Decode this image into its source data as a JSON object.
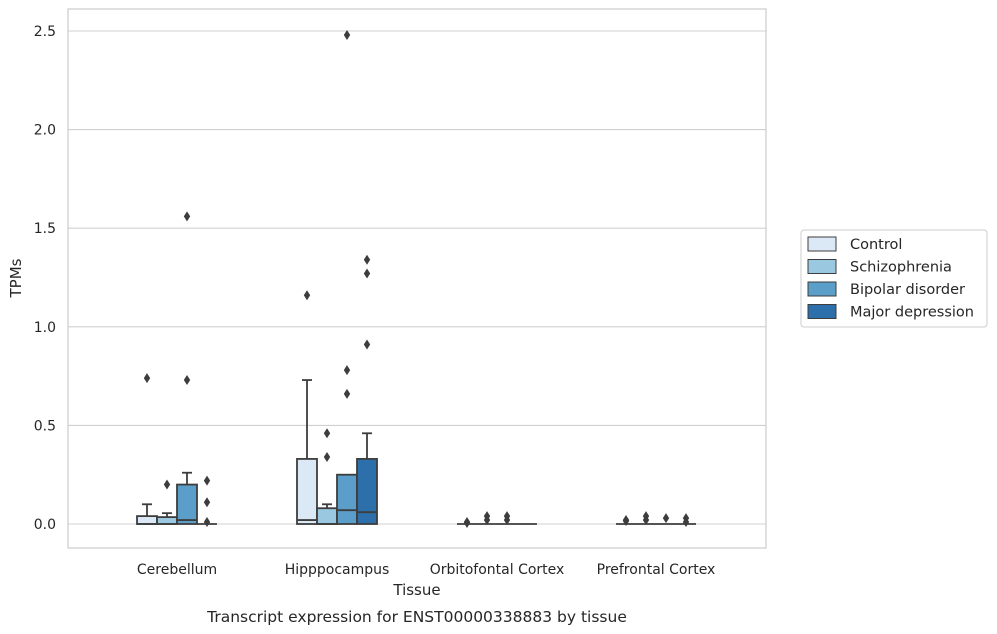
{
  "chart_data": {
    "type": "box",
    "title": "",
    "caption": "Transcript expression for ENST00000338883 by tissue",
    "xlabel": "Tissue",
    "ylabel": "TPMs",
    "ylim": [
      -0.12,
      2.62
    ],
    "yticks": [
      0.0,
      0.5,
      1.0,
      1.5,
      2.0,
      2.5
    ],
    "ytick_labels": [
      "0.0",
      "0.5",
      "1.0",
      "1.5",
      "2.0",
      "2.5"
    ],
    "grid": "horizontal",
    "legend_position": "right",
    "categories": [
      "Cerebellum",
      "Hipppocampus",
      "Orbitofontal Cortex",
      "Prefrontal Cortex"
    ],
    "series": [
      {
        "name": "Control",
        "color": "#dbe9f6",
        "boxes": [
          {
            "q1": 0.0,
            "median": 0.0,
            "q3": 0.04,
            "whisker_low": 0.0,
            "whisker_high": 0.1,
            "outliers": [
              0.74
            ]
          },
          {
            "q1": 0.0,
            "median": 0.02,
            "q3": 0.33,
            "whisker_low": 0.0,
            "whisker_high": 0.73,
            "outliers": [
              1.16
            ]
          },
          {
            "q1": 0.0,
            "median": 0.0,
            "q3": 0.0,
            "whisker_low": 0.0,
            "whisker_high": 0.0,
            "outliers": [
              0.01,
              0.005
            ]
          },
          {
            "q1": 0.0,
            "median": 0.0,
            "q3": 0.0,
            "whisker_low": 0.0,
            "whisker_high": 0.0,
            "outliers": [
              0.02,
              0.015
            ]
          }
        ]
      },
      {
        "name": "Schizophrenia",
        "color": "#9ac8e0",
        "boxes": [
          {
            "q1": 0.0,
            "median": 0.0,
            "q3": 0.035,
            "whisker_low": 0.0,
            "whisker_high": 0.055,
            "outliers": [
              0.2
            ]
          },
          {
            "q1": 0.0,
            "median": 0.0,
            "q3": 0.08,
            "whisker_low": 0.0,
            "whisker_high": 0.1,
            "outliers": [
              0.46,
              0.34
            ]
          },
          {
            "q1": 0.0,
            "median": 0.0,
            "q3": 0.0,
            "whisker_low": 0.0,
            "whisker_high": 0.0,
            "outliers": [
              0.04,
              0.02
            ]
          },
          {
            "q1": 0.0,
            "median": 0.0,
            "q3": 0.0,
            "whisker_low": 0.0,
            "whisker_high": 0.0,
            "outliers": [
              0.04,
              0.02
            ]
          }
        ]
      },
      {
        "name": "Bipolar disorder",
        "color": "#5a9ec9",
        "boxes": [
          {
            "q1": 0.0,
            "median": 0.02,
            "q3": 0.2,
            "whisker_low": 0.0,
            "whisker_high": 0.26,
            "outliers": [
              1.56,
              0.73
            ]
          },
          {
            "q1": 0.0,
            "median": 0.07,
            "q3": 0.25,
            "whisker_low": 0.0,
            "whisker_high": 0.25,
            "outliers": [
              2.48,
              0.78,
              0.66
            ]
          },
          {
            "q1": 0.0,
            "median": 0.0,
            "q3": 0.0,
            "whisker_low": 0.0,
            "whisker_high": 0.0,
            "outliers": [
              0.04,
              0.02
            ]
          },
          {
            "q1": 0.0,
            "median": 0.0,
            "q3": 0.0,
            "whisker_low": 0.0,
            "whisker_high": 0.0,
            "outliers": [
              0.03
            ]
          }
        ]
      },
      {
        "name": "Major depression",
        "color": "#2c6fab",
        "boxes": [
          {
            "q1": 0.0,
            "median": 0.0,
            "q3": 0.0,
            "whisker_low": 0.0,
            "whisker_high": 0.0,
            "outliers": [
              0.22,
              0.11,
              0.01
            ]
          },
          {
            "q1": 0.0,
            "median": 0.06,
            "q3": 0.33,
            "whisker_low": 0.0,
            "whisker_high": 0.46,
            "outliers": [
              1.34,
              1.27,
              0.91
            ]
          },
          {
            "q1": 0.0,
            "median": 0.0,
            "q3": 0.0,
            "whisker_low": 0.0,
            "whisker_high": 0.0,
            "outliers": []
          },
          {
            "q1": 0.0,
            "median": 0.0,
            "q3": 0.0,
            "whisker_low": 0.0,
            "whisker_high": 0.0,
            "outliers": [
              0.03,
              0.01
            ]
          }
        ]
      }
    ]
  }
}
